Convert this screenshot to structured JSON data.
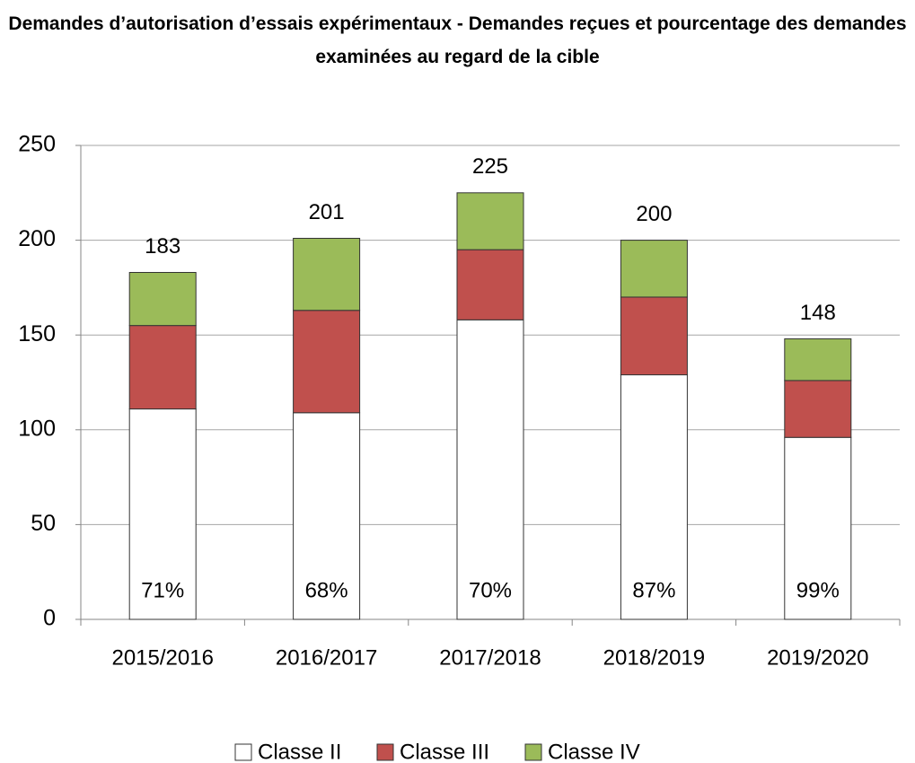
{
  "chart_data": {
    "type": "stacked_bar",
    "title": "Demandes d’autorisation d’essais expérimentaux - Demandes reçues et pourcentage des demandes examinées au regard de la cible",
    "categories": [
      "2015/2016",
      "2016/2017",
      "2017/2018",
      "2018/2019",
      "2019/2020"
    ],
    "series": [
      {
        "name": "Classe II",
        "color": "#ffffff",
        "values": [
          111,
          109,
          158,
          129,
          96
        ]
      },
      {
        "name": "Classe III",
        "color": "#c0504d",
        "values": [
          44,
          54,
          37,
          41,
          30
        ]
      },
      {
        "name": "Classe IV",
        "color": "#9bbb59",
        "values": [
          28,
          38,
          30,
          30,
          22
        ]
      }
    ],
    "totals": [
      183,
      201,
      225,
      200,
      148
    ],
    "percentages": {
      "values": [
        71,
        68,
        70,
        87,
        99
      ],
      "value_labels": [
        "71%",
        "68%",
        "70%",
        "87%",
        "99%"
      ]
    },
    "ylim": [
      0,
      250
    ],
    "yticks": [
      0,
      50,
      100,
      150,
      200,
      250
    ],
    "grid": true,
    "legend": "bottom"
  }
}
